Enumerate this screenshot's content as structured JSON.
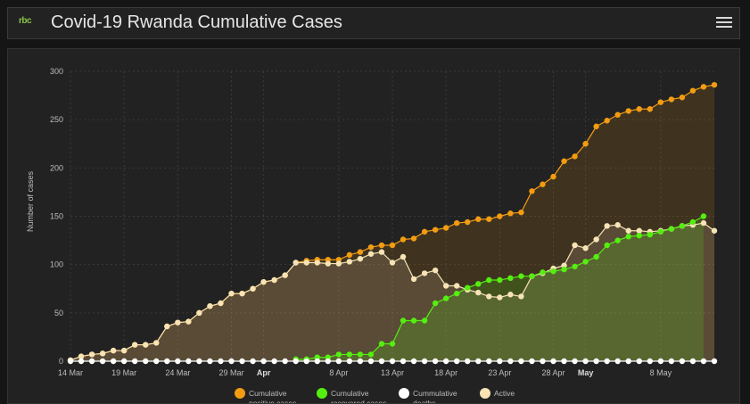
{
  "app": {
    "title": "Covid-19 Rwanda Cumulative Cases",
    "logo_text": "rbc",
    "menu_icon": "hamburger-menu-icon"
  },
  "colors": {
    "positive": "#f39c12",
    "recovered": "#55ee11",
    "deaths": "#ffffff",
    "active": "#f7e3b5"
  },
  "chart_data": {
    "type": "line",
    "title": "",
    "xlabel": "",
    "ylabel": "Number of cases",
    "ylim": [
      0,
      300
    ],
    "yticks": [
      0,
      50,
      100,
      150,
      200,
      250,
      300
    ],
    "x_start": "2020-03-14",
    "xticks": [
      {
        "label": "14 Mar",
        "index": 0
      },
      {
        "label": "19 Mar",
        "index": 5
      },
      {
        "label": "24 Mar",
        "index": 10
      },
      {
        "label": "29 Mar",
        "index": 15
      },
      {
        "label": "Apr",
        "index": 18,
        "bold": true
      },
      {
        "label": "8 Apr",
        "index": 25
      },
      {
        "label": "13 Apr",
        "index": 30
      },
      {
        "label": "18 Apr",
        "index": 35
      },
      {
        "label": "23 Apr",
        "index": 40
      },
      {
        "label": "28 Apr",
        "index": 45
      },
      {
        "label": "May",
        "index": 48,
        "bold": true
      },
      {
        "label": "8 May",
        "index": 55
      }
    ],
    "legend": [
      {
        "label": "Cumulative positive cases",
        "color": "#f39c12"
      },
      {
        "label": "Cumulative recovered cases",
        "color": "#55ee11"
      },
      {
        "label": "Cummulative deaths",
        "color": "#ffffff"
      },
      {
        "label": "Active",
        "color": "#f7e3b5"
      }
    ],
    "series": [
      {
        "name": "Cumulative positive cases",
        "color": "#f39c12",
        "start": 0,
        "values": [
          1,
          5,
          7,
          8,
          11,
          11,
          17,
          17,
          19,
          36,
          40,
          41,
          50,
          57,
          60,
          70,
          70,
          75,
          82,
          84,
          89,
          102,
          104,
          105,
          105,
          105,
          110,
          113,
          118,
          120,
          120,
          126,
          127,
          134,
          136,
          138,
          143,
          144,
          147,
          147,
          150,
          153,
          154,
          176,
          183,
          191,
          207,
          212,
          225,
          243,
          249,
          255,
          259,
          261,
          261,
          268,
          271,
          273,
          280,
          284,
          286
        ]
      },
      {
        "name": "Cumulative recovered cases",
        "color": "#55ee11",
        "start": 21,
        "values": [
          2,
          2,
          4,
          4,
          7,
          7,
          7,
          7,
          18,
          18,
          42,
          42,
          42,
          60,
          65,
          70,
          76,
          80,
          84,
          84,
          86,
          88,
          88,
          92,
          93,
          95,
          98,
          103,
          108,
          120,
          125,
          129,
          130,
          131,
          134,
          137,
          140,
          144,
          150
        ]
      },
      {
        "name": "Cummulative deaths",
        "color": "#ffffff",
        "start": 0,
        "values": [
          0,
          0,
          0,
          0,
          0,
          0,
          0,
          0,
          0,
          0,
          0,
          0,
          0,
          0,
          0,
          0,
          0,
          0,
          0,
          0,
          0,
          0,
          0,
          0,
          0,
          0,
          0,
          0,
          0,
          0,
          0,
          0,
          0,
          0,
          0,
          0,
          0,
          0,
          0,
          0,
          0,
          0,
          0,
          0,
          0,
          0,
          0,
          0,
          0,
          0,
          0,
          0,
          0,
          0,
          0,
          0,
          0,
          0,
          0,
          0,
          0
        ]
      },
      {
        "name": "Active",
        "color": "#f7e3b5",
        "start": 0,
        "values": [
          1,
          5,
          7,
          8,
          11,
          11,
          17,
          17,
          19,
          36,
          40,
          41,
          50,
          57,
          60,
          70,
          70,
          75,
          82,
          84,
          89,
          102,
          102,
          102,
          101,
          101,
          103,
          106,
          111,
          113,
          102,
          108,
          85,
          91,
          94,
          78,
          78,
          74,
          71,
          67,
          66,
          69,
          67,
          88,
          91,
          96,
          99,
          120,
          117,
          126,
          140,
          141,
          135,
          135,
          134,
          135,
          137,
          140,
          141,
          143,
          135
        ]
      }
    ]
  }
}
